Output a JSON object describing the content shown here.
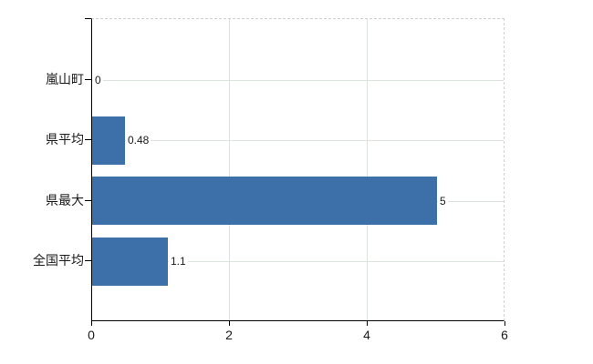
{
  "chart_data": {
    "type": "bar",
    "orientation": "horizontal",
    "title": "",
    "xlabel": "",
    "ylabel": "",
    "categories": [
      "嵐山町",
      "県平均",
      "県最大",
      "全国平均"
    ],
    "values": [
      0,
      0.48,
      5,
      1.1
    ],
    "value_labels": [
      "0",
      "0.48",
      "5",
      "1.1"
    ],
    "xlim": [
      0,
      6
    ],
    "x_ticks": [
      0,
      2,
      4,
      6
    ],
    "x_tick_labels": [
      "0",
      "2",
      "4",
      "6"
    ],
    "inner_gridlines_x": [
      2,
      4
    ],
    "grid": true,
    "legend": false,
    "colors": {
      "bar": "#3d6fa8",
      "gridline": "#dce3dc",
      "dashed_border": "#cfcfcf",
      "axis": "#000000",
      "text": "#1a1a1a",
      "background": "#ffffff"
    }
  }
}
